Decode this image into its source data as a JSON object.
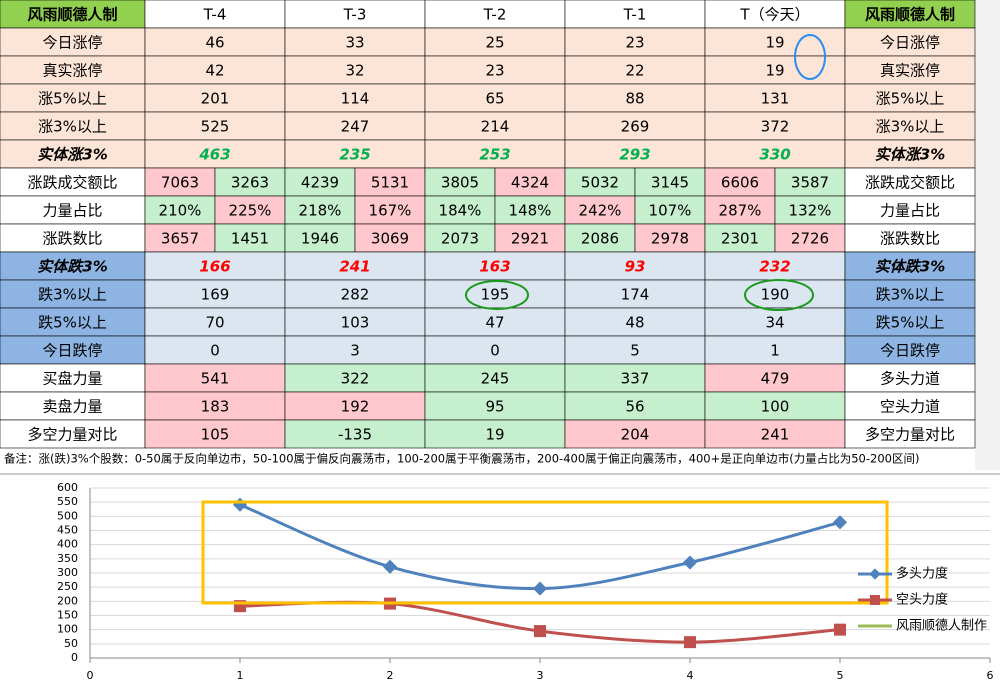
{
  "table": {
    "header": [
      "风雨顺德人制",
      "T-4",
      "T-3",
      "T-2",
      "T-1",
      "T（今天）",
      "风雨顺德人制"
    ],
    "rows": [
      {
        "label": "今日涨停",
        "values": [
          46,
          33,
          25,
          23,
          19
        ],
        "right": "今日涨停"
      },
      {
        "label": "真实涨停",
        "values": [
          42,
          32,
          23,
          22,
          19
        ],
        "right": "真实涨停"
      },
      {
        "label": "涨5%以上",
        "values": [
          201,
          114,
          65,
          88,
          131
        ],
        "right": "涨5%以上"
      },
      {
        "label": "涨3%以上",
        "values": [
          525,
          247,
          214,
          269,
          372
        ],
        "right": "涨3%以上"
      },
      {
        "label": "实体涨3%",
        "values": [
          463,
          235,
          253,
          293,
          330
        ],
        "right": "实体涨3%"
      },
      {
        "label": "涨跌成交额比",
        "values": [
          [
            7063,
            3263
          ],
          [
            4239,
            5131
          ],
          [
            3805,
            4324
          ],
          [
            5032,
            3145
          ],
          [
            6606,
            3587
          ]
        ],
        "right": "涨跌成交额比"
      },
      {
        "label": "力量占比",
        "values": [
          [
            "210%",
            "225%"
          ],
          [
            "218%",
            "167%"
          ],
          [
            "184%",
            "148%"
          ],
          [
            "242%",
            "107%"
          ],
          [
            "287%",
            "132%"
          ]
        ],
        "right": "力量占比"
      },
      {
        "label": "涨跌数比",
        "values": [
          [
            3657,
            1451
          ],
          [
            1946,
            3069
          ],
          [
            2073,
            2921
          ],
          [
            2086,
            2978
          ],
          [
            2301,
            2726
          ]
        ],
        "right": "涨跌数比"
      },
      {
        "label": "实体跌3%",
        "values": [
          166,
          241,
          163,
          93,
          232
        ],
        "right": "实体跌3%"
      },
      {
        "label": "跌3%以上",
        "values": [
          169,
          282,
          195,
          174,
          190
        ],
        "right": "跌3%以上"
      },
      {
        "label": "跌5%以上",
        "values": [
          70,
          103,
          47,
          48,
          34
        ],
        "right": "跌5%以上"
      },
      {
        "label": "今日跌停",
        "values": [
          0,
          3,
          0,
          5,
          1
        ],
        "right": "今日跌停"
      },
      {
        "label": "买盘力量",
        "values": [
          541,
          322,
          245,
          337,
          479
        ],
        "right": "多头力道"
      },
      {
        "label": "卖盘力量",
        "values": [
          183,
          192,
          95,
          56,
          100
        ],
        "right": "空头力道"
      },
      {
        "label": "多空力量对比",
        "values": [
          105,
          -135,
          19,
          204,
          241
        ],
        "right": "多空力量对比"
      }
    ],
    "note": "备注：涨(跌)3%个股数：0-50属于反向单边市，50-100属于偏反向震荡市，100-200属于平衡震荡市，200-400属于偏正向震荡市，400+是正向单边市(力量占比为50-200区间)"
  },
  "chart_data": {
    "type": "line",
    "x": [
      1,
      2,
      3,
      4,
      5
    ],
    "series": [
      {
        "name": "多头力度",
        "color": "#4f81bd",
        "values": [
          541,
          322,
          245,
          337,
          479
        ]
      },
      {
        "name": "空头力度",
        "color": "#c0504d",
        "values": [
          183,
          192,
          95,
          56,
          100
        ]
      },
      {
        "name": "风雨顺德人制作",
        "color": "#9bbb59",
        "values": [
          null,
          null,
          null,
          null,
          null
        ]
      }
    ],
    "xlim": [
      0,
      6
    ],
    "xticks": [
      0,
      1,
      2,
      3,
      4,
      5,
      6
    ],
    "ylim": [
      0,
      600
    ],
    "yticks": [
      0,
      50,
      100,
      150,
      200,
      250,
      300,
      350,
      400,
      450,
      500,
      550,
      600
    ],
    "grid": true
  }
}
